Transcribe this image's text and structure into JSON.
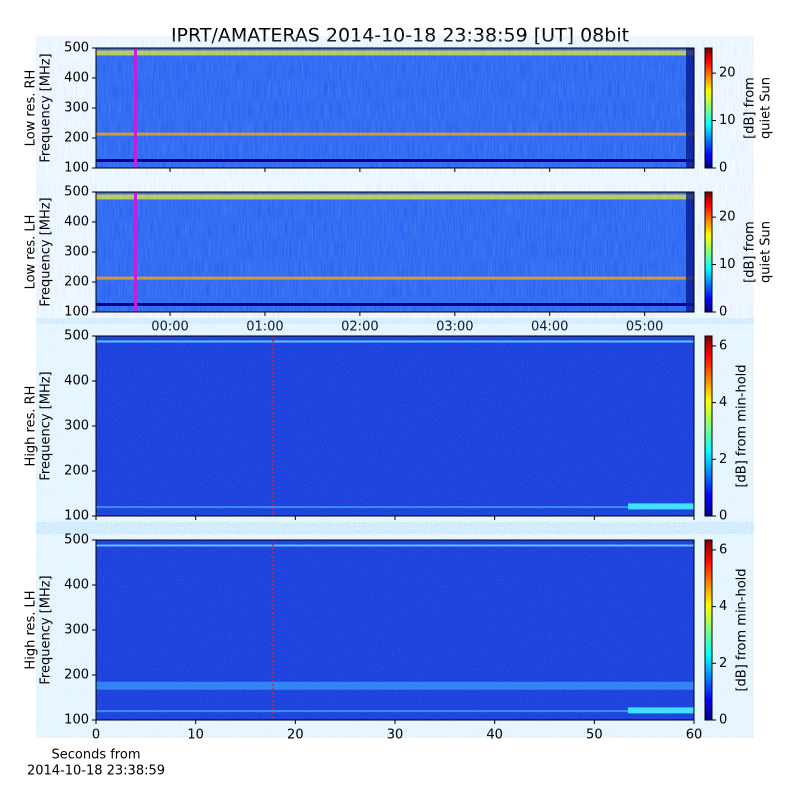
{
  "title": "IPRT/AMATERAS 2014-10-18 23:38:59 [UT]   08bit",
  "chart_data": [
    {
      "type": "heatmap",
      "ylabel": [
        "Low res. RH",
        "Frequency [MHz]"
      ],
      "ylim": [
        100,
        500
      ],
      "yticks": [
        100,
        200,
        300,
        400,
        500
      ],
      "xlim": [
        -0.78,
        5.52
      ],
      "colorbar": {
        "label": [
          "[dB] from",
          "quiet Sun"
        ],
        "lim": [
          0,
          25.3
        ],
        "ticks": [
          0,
          10,
          20
        ]
      }
    },
    {
      "type": "heatmap",
      "ylabel": [
        "Low res. LH",
        "Frequency [MHz]"
      ],
      "ylim": [
        100,
        500
      ],
      "yticks": [
        100,
        200,
        300,
        400,
        500
      ],
      "xlim": [
        -0.78,
        5.52
      ],
      "xticks": [
        {
          "value": 0,
          "label": "00:00"
        },
        {
          "value": 1,
          "label": "01:00"
        },
        {
          "value": 2,
          "label": "02:00"
        },
        {
          "value": 3,
          "label": "03:00"
        },
        {
          "value": 4,
          "label": "04:00"
        },
        {
          "value": 5,
          "label": "05:00"
        }
      ],
      "colorbar": {
        "label": [
          "[dB] from",
          "quiet Sun"
        ],
        "lim": [
          0,
          25.3
        ],
        "ticks": [
          0,
          10,
          20
        ]
      }
    },
    {
      "type": "heatmap",
      "ylabel": [
        "High res. RH",
        "Frequency [MHz]"
      ],
      "ylim": [
        100,
        500
      ],
      "yticks": [
        100,
        200,
        300,
        400,
        500
      ],
      "xlim": [
        0,
        60
      ],
      "colorbar": {
        "label": [
          "[dB] from min-hold"
        ],
        "lim": [
          0,
          6.35
        ],
        "ticks": [
          0,
          2,
          4,
          6
        ]
      }
    },
    {
      "type": "heatmap",
      "ylabel": [
        "High res. LH",
        "Frequency [MHz]"
      ],
      "ylim": [
        100,
        500
      ],
      "yticks": [
        100,
        200,
        300,
        400,
        500
      ],
      "xlim": [
        0,
        60
      ],
      "xticks": [
        0,
        10,
        20,
        30,
        40,
        50,
        60
      ],
      "xlabel": [
        "Seconds from",
        "2014-10-18 23:38:59"
      ],
      "colorbar": {
        "label": [
          "[dB] from min-hold"
        ],
        "lim": [
          0,
          6.35
        ],
        "ticks": [
          0,
          2,
          4,
          6
        ]
      }
    }
  ]
}
